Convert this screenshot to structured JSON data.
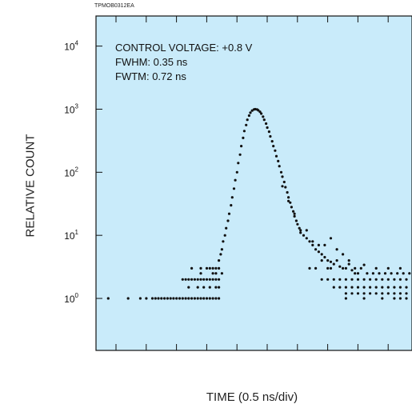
{
  "figure_code": "TPMOB0312EA",
  "chart_data": {
    "type": "scatter",
    "xlabel": "TIME (0.5 ns/div)",
    "ylabel": "RELATIVE COUNT",
    "x_unit": "ns",
    "xlim": [
      0,
      5.75
    ],
    "x_div": 0.5,
    "log_y": true,
    "ylim": [
      0.15,
      30000
    ],
    "grid": false,
    "frame_background": "#c9ebfa",
    "marker_color": "#111111",
    "y_ticks": [
      {
        "value": 1,
        "base": "10",
        "exp": "0"
      },
      {
        "value": 10,
        "base": "10",
        "exp": "1"
      },
      {
        "value": 100,
        "base": "10",
        "exp": "2"
      },
      {
        "value": 1000,
        "base": "10",
        "exp": "3"
      },
      {
        "value": 10000,
        "base": "10",
        "exp": "4"
      }
    ],
    "annotations": [
      "CONTROL VOLTAGE: +0.8 V",
      "FWHM: 0.35 ns",
      "FWTM: 0.72 ns"
    ],
    "points": [
      [
        0.07,
        1
      ],
      [
        0.4,
        1
      ],
      [
        0.6,
        1
      ],
      [
        0.7,
        1
      ],
      [
        0.8,
        1
      ],
      [
        0.85,
        1
      ],
      [
        0.9,
        1
      ],
      [
        0.95,
        1
      ],
      [
        1.0,
        1
      ],
      [
        1.05,
        1
      ],
      [
        1.1,
        1
      ],
      [
        1.15,
        1
      ],
      [
        1.2,
        1
      ],
      [
        1.25,
        1
      ],
      [
        1.3,
        1
      ],
      [
        1.35,
        1
      ],
      [
        1.4,
        1
      ],
      [
        1.45,
        1
      ],
      [
        1.5,
        1
      ],
      [
        1.55,
        1
      ],
      [
        1.6,
        1
      ],
      [
        1.65,
        1
      ],
      [
        1.7,
        1
      ],
      [
        1.75,
        1
      ],
      [
        1.8,
        1
      ],
      [
        1.85,
        1
      ],
      [
        1.9,
        1
      ],
      [
        1.3,
        2
      ],
      [
        1.35,
        2
      ],
      [
        1.4,
        2
      ],
      [
        1.45,
        2
      ],
      [
        1.5,
        2
      ],
      [
        1.55,
        2
      ],
      [
        1.6,
        2
      ],
      [
        1.65,
        2
      ],
      [
        1.7,
        2
      ],
      [
        1.75,
        2
      ],
      [
        1.8,
        2
      ],
      [
        1.85,
        2
      ],
      [
        1.9,
        2
      ],
      [
        1.45,
        3
      ],
      [
        1.6,
        3
      ],
      [
        1.7,
        3
      ],
      [
        1.75,
        3
      ],
      [
        1.8,
        3
      ],
      [
        1.85,
        3
      ],
      [
        1.9,
        3
      ],
      [
        1.4,
        1.5
      ],
      [
        1.55,
        1.5
      ],
      [
        1.65,
        1.5
      ],
      [
        1.75,
        1.5
      ],
      [
        1.85,
        1.5
      ],
      [
        1.9,
        1.5
      ],
      [
        1.6,
        2.5
      ],
      [
        1.8,
        2.5
      ],
      [
        1.85,
        2.5
      ],
      [
        1.95,
        2.5
      ],
      [
        1.9,
        4
      ],
      [
        1.93,
        5
      ],
      [
        1.95,
        6
      ],
      [
        1.97,
        8
      ],
      [
        2.0,
        10
      ],
      [
        2.02,
        13
      ],
      [
        2.05,
        17
      ],
      [
        2.07,
        22
      ],
      [
        2.1,
        30
      ],
      [
        2.12,
        40
      ],
      [
        2.15,
        55
      ],
      [
        2.17,
        75
      ],
      [
        2.2,
        100
      ],
      [
        2.22,
        140
      ],
      [
        2.25,
        190
      ],
      [
        2.27,
        260
      ],
      [
        2.3,
        350
      ],
      [
        2.32,
        450
      ],
      [
        2.35,
        560
      ],
      [
        2.37,
        680
      ],
      [
        2.4,
        790
      ],
      [
        2.42,
        880
      ],
      [
        2.45,
        950
      ],
      [
        2.48,
        990
      ],
      [
        2.5,
        1000
      ],
      [
        2.53,
        990
      ],
      [
        2.55,
        960
      ],
      [
        2.58,
        910
      ],
      [
        2.6,
        850
      ],
      [
        2.63,
        760
      ],
      [
        2.65,
        680
      ],
      [
        2.68,
        590
      ],
      [
        2.7,
        510
      ],
      [
        2.73,
        440
      ],
      [
        2.75,
        370
      ],
      [
        2.78,
        310
      ],
      [
        2.8,
        260
      ],
      [
        2.83,
        220
      ],
      [
        2.85,
        180
      ],
      [
        2.88,
        150
      ],
      [
        2.9,
        125
      ],
      [
        2.93,
        100
      ],
      [
        2.95,
        85
      ],
      [
        2.98,
        70
      ],
      [
        3.0,
        58
      ],
      [
        3.03,
        48
      ],
      [
        3.05,
        40
      ],
      [
        3.08,
        33
      ],
      [
        3.1,
        28
      ],
      [
        3.13,
        24
      ],
      [
        3.15,
        20
      ],
      [
        3.18,
        17
      ],
      [
        3.2,
        15
      ],
      [
        3.23,
        13
      ],
      [
        3.25,
        12
      ],
      [
        3.3,
        10
      ],
      [
        3.35,
        9
      ],
      [
        3.4,
        8
      ],
      [
        3.45,
        7
      ],
      [
        3.5,
        6
      ],
      [
        3.55,
        5.5
      ],
      [
        3.6,
        5
      ],
      [
        3.65,
        4.5
      ],
      [
        3.7,
        4
      ],
      [
        3.75,
        3.8
      ],
      [
        3.8,
        3.5
      ],
      [
        3.9,
        3.2
      ],
      [
        4.0,
        3
      ],
      [
        4.1,
        2.8
      ],
      [
        4.2,
        2.5
      ],
      [
        2.95,
        60
      ],
      [
        3.05,
        35
      ],
      [
        3.15,
        22
      ],
      [
        3.25,
        11
      ],
      [
        3.35,
        12
      ],
      [
        3.45,
        8
      ],
      [
        3.55,
        7
      ],
      [
        3.65,
        7
      ],
      [
        3.75,
        9
      ],
      [
        3.85,
        6
      ],
      [
        3.95,
        5
      ],
      [
        4.05,
        4
      ],
      [
        4.15,
        3
      ],
      [
        3.4,
        3
      ],
      [
        3.5,
        3
      ],
      [
        3.6,
        2
      ],
      [
        3.7,
        2
      ],
      [
        3.75,
        3
      ],
      [
        3.8,
        2
      ],
      [
        3.9,
        2
      ],
      [
        4.0,
        2
      ],
      [
        4.1,
        2
      ],
      [
        4.2,
        2
      ],
      [
        4.3,
        2
      ],
      [
        4.4,
        2
      ],
      [
        4.5,
        2
      ],
      [
        4.6,
        2
      ],
      [
        4.7,
        2
      ],
      [
        4.8,
        2
      ],
      [
        4.9,
        2
      ],
      [
        5.0,
        2
      ],
      [
        5.1,
        2
      ],
      [
        5.2,
        2
      ],
      [
        5.3,
        2
      ],
      [
        5.4,
        2
      ],
      [
        5.5,
        2
      ],
      [
        5.6,
        2
      ],
      [
        5.7,
        2
      ],
      [
        3.6,
        4
      ],
      [
        3.7,
        3
      ],
      [
        3.85,
        4
      ],
      [
        3.95,
        3
      ],
      [
        4.05,
        3.5
      ],
      [
        4.15,
        2.5
      ],
      [
        4.25,
        3
      ],
      [
        4.35,
        2.5
      ],
      [
        4.45,
        2.5
      ],
      [
        4.55,
        2.5
      ],
      [
        4.65,
        2.5
      ],
      [
        4.75,
        2.5
      ],
      [
        4.85,
        2.5
      ],
      [
        4.95,
        2.5
      ],
      [
        5.05,
        2.5
      ],
      [
        5.15,
        2.5
      ],
      [
        5.25,
        2.5
      ],
      [
        5.35,
        2.5
      ],
      [
        5.45,
        2.5
      ],
      [
        5.55,
        2.5
      ],
      [
        5.65,
        2.5
      ],
      [
        3.8,
        1.5
      ],
      [
        3.9,
        1.5
      ],
      [
        4.0,
        1.5
      ],
      [
        4.1,
        1.5
      ],
      [
        4.2,
        1.5
      ],
      [
        4.3,
        1.5
      ],
      [
        4.4,
        1.5
      ],
      [
        4.5,
        1.5
      ],
      [
        4.6,
        1.5
      ],
      [
        4.7,
        1.5
      ],
      [
        4.8,
        1.5
      ],
      [
        4.9,
        1.5
      ],
      [
        5.0,
        1.5
      ],
      [
        5.1,
        1.5
      ],
      [
        5.2,
        1.5
      ],
      [
        5.3,
        1.5
      ],
      [
        5.4,
        1.5
      ],
      [
        5.5,
        1.5
      ],
      [
        5.6,
        1.5
      ],
      [
        5.7,
        1.5
      ],
      [
        4.0,
        1.2
      ],
      [
        4.1,
        1.2
      ],
      [
        4.2,
        1.2
      ],
      [
        4.3,
        1.2
      ],
      [
        4.4,
        1.2
      ],
      [
        4.5,
        1.2
      ],
      [
        4.6,
        1.2
      ],
      [
        4.7,
        1.2
      ],
      [
        4.8,
        1.2
      ],
      [
        4.9,
        1.2
      ],
      [
        5.0,
        1.2
      ],
      [
        5.1,
        1.2
      ],
      [
        5.2,
        1.2
      ],
      [
        5.3,
        1.2
      ],
      [
        5.4,
        1.2
      ],
      [
        5.5,
        1.2
      ],
      [
        5.6,
        1.2
      ],
      [
        5.7,
        1.2
      ],
      [
        4.3,
        3.4
      ],
      [
        4.5,
        3
      ],
      [
        4.7,
        3
      ],
      [
        4.9,
        3
      ],
      [
        5.1,
        3
      ],
      [
        5.3,
        3
      ],
      [
        5.5,
        3
      ],
      [
        5.7,
        3
      ],
      [
        4.0,
        1
      ],
      [
        4.3,
        1
      ],
      [
        4.6,
        1
      ],
      [
        4.8,
        1
      ],
      [
        4.9,
        1
      ],
      [
        5.0,
        1
      ],
      [
        5.1,
        1
      ],
      [
        5.2,
        1
      ],
      [
        5.3,
        1
      ],
      [
        5.5,
        1
      ],
      [
        5.7,
        1
      ]
    ]
  }
}
